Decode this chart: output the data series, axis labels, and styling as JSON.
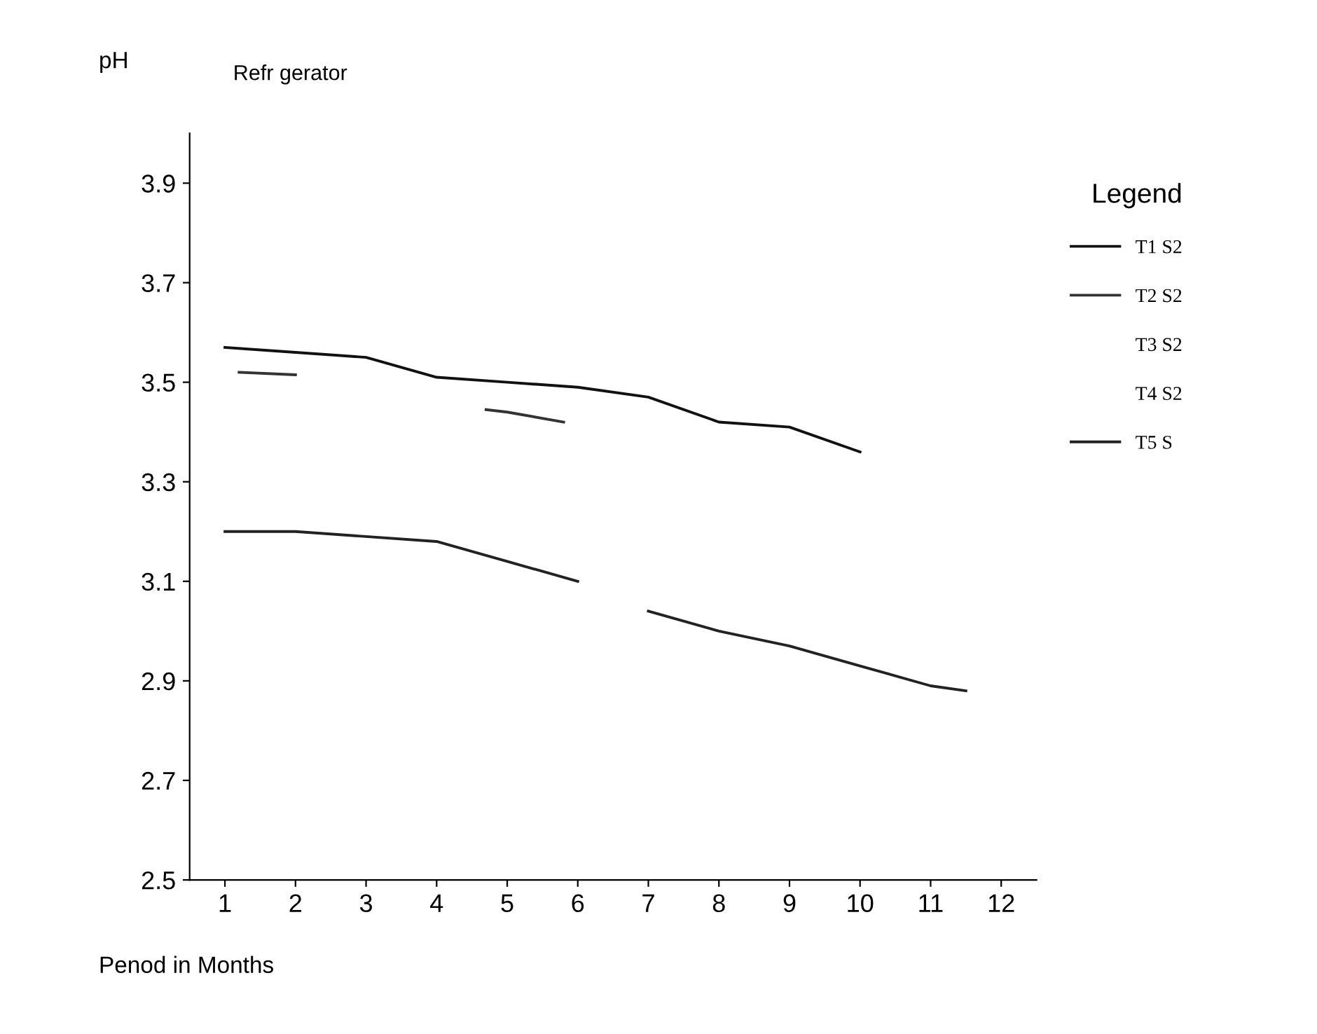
{
  "chart_data": {
    "type": "line",
    "title": "Refr gerator",
    "xlabel": "Penod in Months",
    "ylabel": "pH",
    "legend_title": "Legend",
    "xlim": [
      0.5,
      12.5
    ],
    "xticks": [
      1,
      2,
      3,
      4,
      5,
      6,
      7,
      8,
      9,
      10,
      11,
      12
    ],
    "ylim": [
      2.5,
      4.0
    ],
    "yticks": [
      2.5,
      2.7,
      2.9,
      3.1,
      3.3,
      3.5,
      3.7,
      3.9
    ],
    "grid": false,
    "legend": "right",
    "marker": "none",
    "line_style": "solid",
    "series": [
      {
        "name": "T1 S2",
        "color": "#111111",
        "x": [
          1,
          2,
          3,
          4,
          5,
          6,
          7,
          8,
          9,
          10
        ],
        "values": [
          3.57,
          3.56,
          3.55,
          3.51,
          3.5,
          3.49,
          3.47,
          3.42,
          3.41,
          3.36
        ]
      },
      {
        "name": "T2 S2",
        "color": "#333333",
        "x": [
          1.2,
          2,
          3,
          4.7,
          5,
          5.8
        ],
        "values": [
          3.52,
          3.515,
          null,
          3.445,
          3.44,
          3.42
        ]
      },
      {
        "name": "T3 S2"
      },
      {
        "name": "T4 S2"
      },
      {
        "name": "T5 S",
        "color": "#222222",
        "x": [
          1,
          2,
          3,
          4,
          5,
          6,
          6.5,
          7,
          8,
          9,
          10,
          11,
          11.5
        ],
        "values": [
          3.2,
          3.2,
          3.19,
          3.18,
          3.14,
          3.1,
          null,
          3.04,
          3.0,
          2.97,
          2.93,
          2.89,
          2.88
        ]
      }
    ]
  }
}
